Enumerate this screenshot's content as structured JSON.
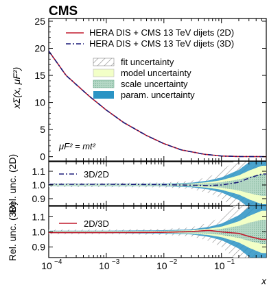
{
  "header": {
    "collaboration": "CMS"
  },
  "colors": {
    "line_2d": "#c0182b",
    "line_3d": "#1b1b78",
    "model": "#f2ffc7",
    "scale": "#a7cfbd",
    "param": "#2a93c4",
    "fit_hatch": "#8a8a8a"
  },
  "chart_data": [
    {
      "type": "line",
      "panel": "main",
      "ylabel": "xΣ(x, μF²)",
      "xscale": "log",
      "xlim": [
        0.0001,
        0.6
      ],
      "ylim": [
        -0.8,
        25.5
      ],
      "yticks": [
        0,
        5,
        10,
        15,
        20,
        25
      ],
      "annotation": "μF² = mt²",
      "legend_placement": "top-right",
      "legend": [
        "HERA DIS + CMS 13 TeV dijets (2D)",
        "HERA DIS + CMS 13 TeV dijets (3D)",
        "fit uncertainty",
        "model uncertainty",
        "scale uncertainty",
        "param. uncertainty"
      ],
      "x": [
        0.0001,
        0.0002,
        0.0005,
        0.001,
        0.002,
        0.005,
        0.01,
        0.02,
        0.05,
        0.1,
        0.2,
        0.5
      ],
      "series": [
        {
          "name": "HERA DIS + CMS 13 TeV dijets (2D)",
          "style": "solid",
          "values": [
            19.5,
            15.0,
            11.2,
            8.6,
            6.3,
            3.9,
            2.4,
            1.25,
            0.45,
            0.12,
            0.03,
            0.0
          ]
        },
        {
          "name": "HERA DIS + CMS 13 TeV dijets (3D)",
          "style": "dashdot",
          "values": [
            19.5,
            15.0,
            11.2,
            8.6,
            6.3,
            3.9,
            2.4,
            1.25,
            0.45,
            0.12,
            0.03,
            0.0
          ]
        }
      ]
    },
    {
      "type": "line",
      "panel": "ratio-2d",
      "ylabel": "Rel. unc. (2D)",
      "xscale": "log",
      "ylim": [
        0.85,
        1.17
      ],
      "yticks": [
        0.9,
        1.0,
        1.1
      ],
      "legend": [
        "3D/2D"
      ],
      "x": [
        0.0001,
        0.001,
        0.01,
        0.03,
        0.06,
        0.1,
        0.2,
        0.3,
        0.5
      ],
      "band_up": [
        1.015,
        1.015,
        1.018,
        1.03,
        1.06,
        1.1,
        1.2,
        1.3,
        1.4
      ],
      "band_down": [
        0.985,
        0.985,
        0.982,
        0.97,
        0.94,
        0.9,
        0.8,
        0.7,
        0.6
      ],
      "series": [
        {
          "name": "3D/2D",
          "style": "dashdot",
          "values": [
            1.005,
            1.005,
            1.003,
            0.998,
            0.995,
            1.0,
            1.02,
            1.05,
            1.08
          ]
        }
      ]
    },
    {
      "type": "line",
      "panel": "ratio-3d",
      "ylabel": "Rel. unc. (3D)",
      "xscale": "log",
      "ylim": [
        0.83,
        1.17
      ],
      "yticks": [
        0.9,
        1.0,
        1.1
      ],
      "xticks": [
        0.0001,
        0.001,
        0.01,
        0.1
      ],
      "xticklabels": [
        "10",
        "10",
        "10",
        "10"
      ],
      "xtickexps": [
        "−4",
        "−3",
        "−2",
        "−1"
      ],
      "xlabel": "x",
      "legend": [
        "2D/3D"
      ],
      "x": [
        0.0001,
        0.001,
        0.01,
        0.03,
        0.06,
        0.1,
        0.2,
        0.3,
        0.5
      ],
      "band_up": [
        1.015,
        1.015,
        1.02,
        1.03,
        1.06,
        1.1,
        1.2,
        1.3,
        1.4
      ],
      "band_down": [
        0.985,
        0.985,
        0.98,
        0.97,
        0.94,
        0.9,
        0.8,
        0.7,
        0.6
      ],
      "series": [
        {
          "name": "2D/3D",
          "style": "solid",
          "values": [
            0.995,
            0.995,
            0.997,
            1.002,
            1.01,
            1.0,
            0.99,
            0.97,
            0.95
          ]
        }
      ]
    }
  ]
}
